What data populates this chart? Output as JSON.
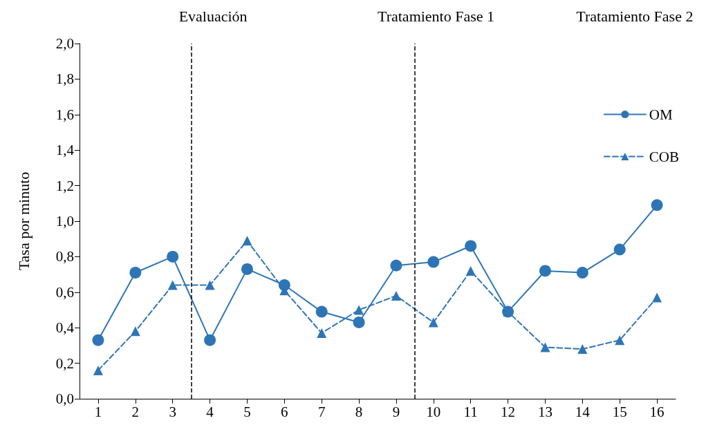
{
  "chart_data": {
    "type": "line",
    "ylabel": "Tasa por minuto",
    "x": [
      1,
      2,
      3,
      4,
      5,
      6,
      7,
      8,
      9,
      10,
      11,
      12,
      13,
      14,
      15,
      16
    ],
    "xlim": [
      0.5,
      16.5
    ],
    "xticks": [
      1,
      2,
      3,
      4,
      5,
      6,
      7,
      8,
      9,
      10,
      11,
      12,
      13,
      14,
      15,
      16
    ],
    "ylim": [
      0,
      2
    ],
    "yticks": [
      {
        "value": 0,
        "label": "0,0"
      },
      {
        "value": 0.2,
        "label": "0,2"
      },
      {
        "value": 0.4,
        "label": "0,4"
      },
      {
        "value": 0.6,
        "label": "0,6"
      },
      {
        "value": 0.8,
        "label": "0,8"
      },
      {
        "value": 1,
        "label": "1,0"
      },
      {
        "value": 1.2,
        "label": "1,2"
      },
      {
        "value": 1.4,
        "label": "1,4"
      },
      {
        "value": 1.6,
        "label": "1,6"
      },
      {
        "value": 1.8,
        "label": "1,8"
      },
      {
        "value": 2,
        "label": "2,0"
      }
    ],
    "series": [
      {
        "name": "OM",
        "color": "#2e75b6",
        "marker": "circle",
        "line_style": "solid",
        "values": [
          0.33,
          0.71,
          0.8,
          0.33,
          0.73,
          0.64,
          0.49,
          0.43,
          0.75,
          0.77,
          0.86,
          0.49,
          0.72,
          0.71,
          0.84,
          1.09
        ]
      },
      {
        "name": "COB",
        "color": "#2e75b6",
        "marker": "triangle",
        "line_style": "dashed",
        "values": [
          0.16,
          0.38,
          0.64,
          0.64,
          0.89,
          0.61,
          0.37,
          0.5,
          0.58,
          0.43,
          0.72,
          0.49,
          0.29,
          0.28,
          0.33,
          0.57
        ]
      }
    ],
    "ref_lines": [
      {
        "axis": "x",
        "value": 3.5,
        "color": "#000000",
        "line_style": "dashed"
      },
      {
        "axis": "x",
        "value": 9.5,
        "color": "#000000",
        "line_style": "dashed"
      }
    ],
    "annotations": [
      "Evaluación",
      "Tratamiento Fase 1",
      "Tratamiento Fase 2"
    ],
    "grid": false,
    "legend": "top right"
  }
}
